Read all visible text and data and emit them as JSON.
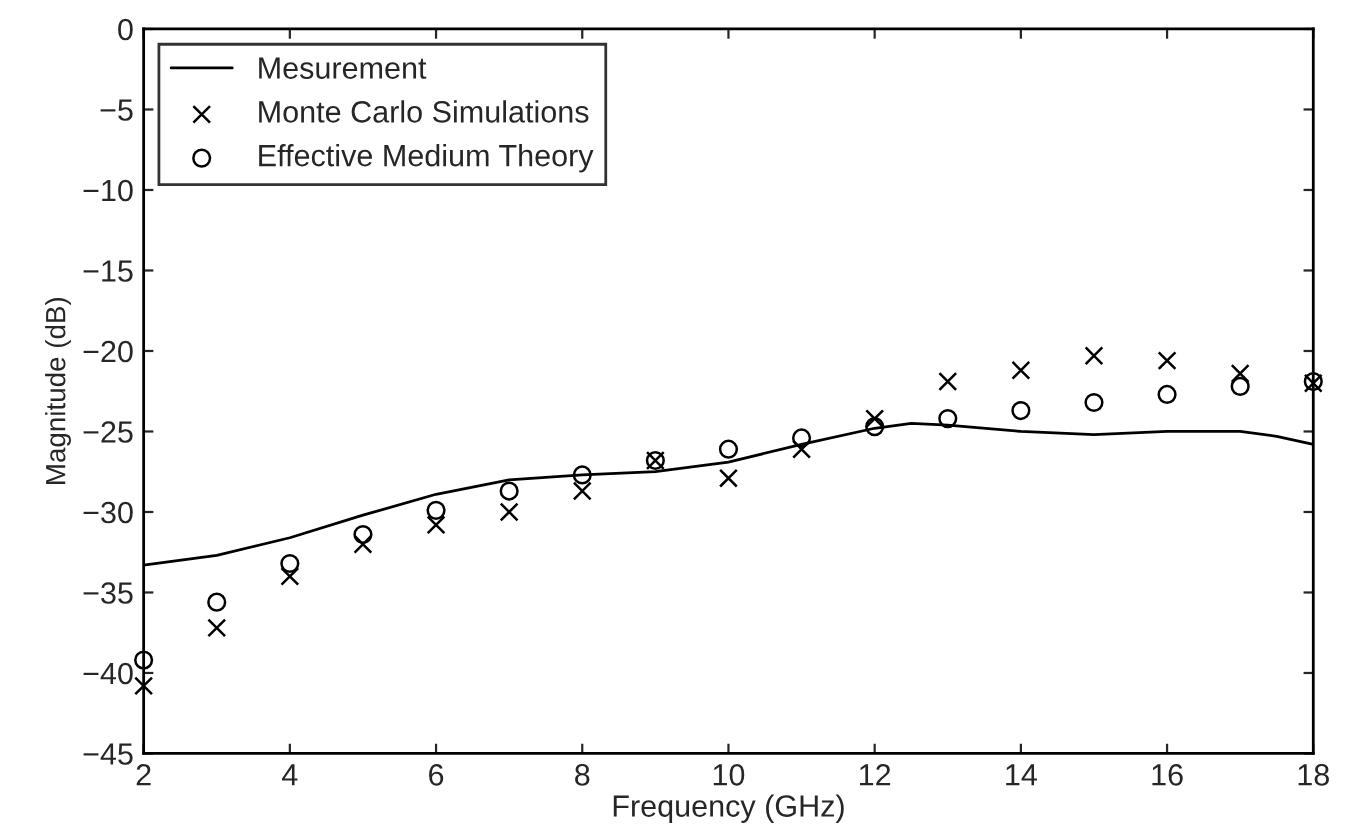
{
  "chart_data": {
    "type": "line",
    "xlabel": "Frequency (GHz)",
    "ylabel": "Magnitude (dB)",
    "xlim": [
      2,
      18
    ],
    "xticks": [
      2,
      4,
      6,
      8,
      10,
      12,
      14,
      16,
      18
    ],
    "ylim": [
      -45,
      0
    ],
    "yticks": [
      -45,
      -40,
      -35,
      -30,
      -25,
      -20,
      -15,
      -10,
      -5,
      0
    ],
    "legend": "top left",
    "grid": false,
    "series": [
      {
        "name": "Mesurement",
        "type": "line",
        "color": "#000000",
        "marker": "none",
        "line_style": "solid",
        "x": [
          2,
          3,
          4,
          5,
          6,
          7,
          8,
          9,
          10,
          11,
          12,
          12.5,
          13,
          14,
          15,
          16,
          17,
          17.5,
          18
        ],
        "values": [
          -33.3,
          -32.7,
          -31.6,
          -30.2,
          -28.9,
          -28.0,
          -27.7,
          -27.5,
          -26.9,
          -25.8,
          -24.8,
          -24.5,
          -24.6,
          -25.0,
          -25.2,
          -25.0,
          -25.0,
          -25.3,
          -25.8
        ]
      },
      {
        "name": "Monte Carlo Simulations",
        "type": "scatter",
        "color": "#000000",
        "marker": "cross",
        "x": [
          2,
          3,
          4,
          5,
          6,
          7,
          8,
          9,
          10,
          11,
          12,
          13,
          14,
          15,
          16,
          17,
          18
        ],
        "values": [
          -40.8,
          -37.2,
          -34.0,
          -32.0,
          -30.8,
          -30.0,
          -28.7,
          -26.8,
          -27.9,
          -26.1,
          -24.2,
          -21.9,
          -21.2,
          -20.3,
          -20.6,
          -21.4,
          -22.0
        ]
      },
      {
        "name": "Effective Medium Theory",
        "type": "scatter",
        "color": "#000000",
        "marker": "circle",
        "x": [
          2,
          3,
          4,
          5,
          6,
          7,
          8,
          9,
          10,
          11,
          12,
          13,
          14,
          15,
          16,
          17,
          18
        ],
        "values": [
          -39.2,
          -35.6,
          -33.2,
          -31.4,
          -29.9,
          -28.7,
          -27.7,
          -26.8,
          -26.1,
          -25.4,
          -24.7,
          -24.2,
          -23.7,
          -23.2,
          -22.7,
          -22.2,
          -21.9
        ]
      }
    ]
  }
}
